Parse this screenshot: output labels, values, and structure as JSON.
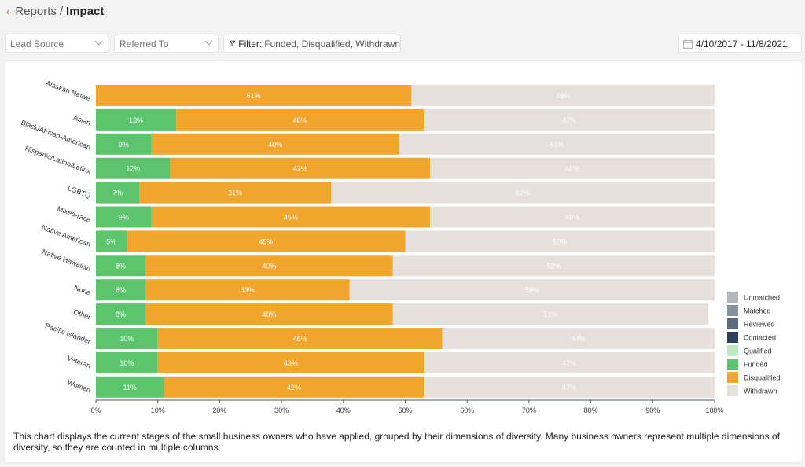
{
  "header": {
    "back_icon": "chevron-left-icon",
    "crumb": "Reports",
    "separator": "/",
    "current": "Impact"
  },
  "toolbar": {
    "lead_source": "Lead Source",
    "referred_to": "Referred To",
    "filter_label": "Filter:",
    "filter_values": "Funded, Disqualified, Withdrawn",
    "date_range": "4/10/2017 - 11/8/2021"
  },
  "caption": "This chart displays the current stages of the small business owners who have applied, grouped by their dimensions of diversity. Many business owners represent multiple dimensions of diversity, so they are counted in multiple columns.",
  "chart_data": {
    "type": "bar",
    "orientation": "horizontal",
    "stacked": true,
    "categories": [
      "Alaskan Native",
      "Asian",
      "Black/African-American",
      "Hispanic/Latino/Latinx",
      "LGBTQ",
      "Mixed-race",
      "Native American",
      "Native Hawaiian",
      "None",
      "Other",
      "Pacific Islander",
      "Veteran",
      "Women"
    ],
    "series": [
      {
        "name": "Funded",
        "color": "#5dc46e",
        "values": [
          0,
          13,
          9,
          12,
          7,
          9,
          5,
          8,
          8,
          8,
          10,
          10,
          11
        ]
      },
      {
        "name": "Disqualified",
        "color": "#f1a52c",
        "values": [
          51,
          40,
          40,
          42,
          31,
          45,
          45,
          40,
          33,
          40,
          46,
          43,
          42
        ]
      },
      {
        "name": "Withdrawn",
        "color": "#e6e0dd",
        "values": [
          49,
          47,
          51,
          46,
          62,
          46,
          50,
          52,
          59,
          51,
          44,
          47,
          47
        ]
      }
    ],
    "xlim": [
      0,
      100
    ],
    "x_ticks": [
      "0%",
      "10%",
      "20%",
      "30%",
      "40%",
      "50%",
      "60%",
      "70%",
      "80%",
      "90%",
      "100%"
    ],
    "legend": {
      "position": "right",
      "entries": [
        {
          "name": "Unmatched",
          "color": "#b3b8bf"
        },
        {
          "name": "Matched",
          "color": "#8792a0"
        },
        {
          "name": "Reviewed",
          "color": "#5a6a80"
        },
        {
          "name": "Contacted",
          "color": "#2e3f5c"
        },
        {
          "name": "Qualified",
          "color": "#bfe8c5"
        },
        {
          "name": "Funded",
          "color": "#5dc46e"
        },
        {
          "name": "Disqualified",
          "color": "#f1a52c"
        },
        {
          "name": "Withdrawn",
          "color": "#e6e0dd"
        }
      ]
    }
  }
}
